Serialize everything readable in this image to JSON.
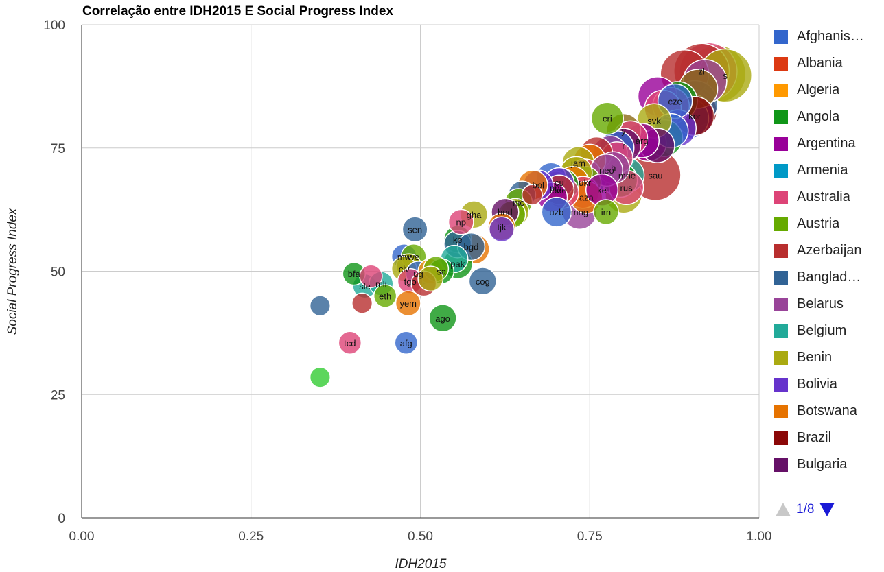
{
  "title": "Correlação entre IDH2015 E Social Progress Index",
  "legend": {
    "items": [
      {
        "label": "Afghanis…",
        "color": "#3366cc"
      },
      {
        "label": "Albania",
        "color": "#dc3912"
      },
      {
        "label": "Algeria",
        "color": "#ff9900"
      },
      {
        "label": "Angola",
        "color": "#109618"
      },
      {
        "label": "Argentina",
        "color": "#990099"
      },
      {
        "label": "Armenia",
        "color": "#0099c6"
      },
      {
        "label": "Australia",
        "color": "#dd4477"
      },
      {
        "label": "Austria",
        "color": "#66aa00"
      },
      {
        "label": "Azerbaijan",
        "color": "#b82e2e"
      },
      {
        "label": "Banglad…",
        "color": "#316395"
      },
      {
        "label": "Belarus",
        "color": "#994499"
      },
      {
        "label": "Belgium",
        "color": "#22aa99"
      },
      {
        "label": "Benin",
        "color": "#aaaa11"
      },
      {
        "label": "Bolivia",
        "color": "#6633cc"
      },
      {
        "label": "Botswana",
        "color": "#e67300"
      },
      {
        "label": "Brazil",
        "color": "#8b0707"
      },
      {
        "label": "Bulgaria",
        "color": "#651067"
      }
    ],
    "pager": {
      "text": "1/8"
    }
  },
  "chart_data": {
    "type": "scatter",
    "title": "Correlação entre IDH2015 E Social Progress Index",
    "xlabel": "IDH2015",
    "ylabel": "Social Progress Index",
    "xlim": [
      0.0,
      1.0
    ],
    "ylim": [
      0,
      100
    ],
    "x_ticks": [
      "0.00",
      "0.25",
      "0.50",
      "0.75",
      "1.00"
    ],
    "y_ticks": [
      "0",
      "25",
      "50",
      "75",
      "100"
    ],
    "grid": true,
    "legend_position": "right",
    "bubble": true,
    "points": [
      {
        "x": 0.938,
        "y": 90.0,
        "label": "",
        "color": "#aaaa11",
        "size": 1.0
      },
      {
        "x": 0.925,
        "y": 90.5,
        "label": "",
        "color": "#dd4477",
        "size": 1.0
      },
      {
        "x": 0.915,
        "y": 90.6,
        "label": "zl",
        "color": "#b82e2e",
        "size": 0.95
      },
      {
        "x": 0.95,
        "y": 89.7,
        "label": "s",
        "color": "#aaaa11",
        "size": 0.9
      },
      {
        "x": 0.89,
        "y": 90.0,
        "label": "",
        "color": "#b82e2e",
        "size": 0.8
      },
      {
        "x": 0.92,
        "y": 88.5,
        "label": "",
        "color": "#994499",
        "size": 0.7
      },
      {
        "x": 0.91,
        "y": 87.0,
        "label": "",
        "color": "#8b6914",
        "size": 0.6
      },
      {
        "x": 0.9,
        "y": 82.5,
        "label": "",
        "color": "#8b0707",
        "size": 0.85
      },
      {
        "x": 0.895,
        "y": 82.0,
        "label": "",
        "color": "#dd4477",
        "size": 0.85
      },
      {
        "x": 0.905,
        "y": 84.0,
        "label": "",
        "color": "#316395",
        "size": 0.75
      },
      {
        "x": 0.9,
        "y": 81.5,
        "label": "",
        "color": "#6633cc",
        "size": 0.7
      },
      {
        "x": 0.88,
        "y": 84.5,
        "label": "",
        "color": "#109618",
        "size": 0.6
      },
      {
        "x": 0.895,
        "y": 81.0,
        "label": "",
        "color": "#3366cc",
        "size": 0.65
      },
      {
        "x": 0.85,
        "y": 85.5,
        "label": "",
        "color": "#990099",
        "size": 0.6
      },
      {
        "x": 0.876,
        "y": 84.5,
        "label": "cze",
        "color": "#3366cc",
        "size": 0.5
      },
      {
        "x": 0.905,
        "y": 81.5,
        "label": "kor",
        "color": "#8b0707",
        "size": 0.6
      },
      {
        "x": 0.87,
        "y": 83.5,
        "label": "",
        "color": "#dd4477",
        "size": 0.55
      },
      {
        "x": 0.858,
        "y": 83.0,
        "label": "",
        "color": "#dd4477",
        "size": 0.55
      },
      {
        "x": 0.88,
        "y": 79.0,
        "label": "",
        "color": "#6633cc",
        "size": 0.55
      },
      {
        "x": 0.87,
        "y": 78.5,
        "label": "",
        "color": "#3366cc",
        "size": 0.5
      },
      {
        "x": 0.86,
        "y": 77.0,
        "label": "",
        "color": "#109618",
        "size": 0.55
      },
      {
        "x": 0.845,
        "y": 80.5,
        "label": "svk",
        "color": "#aaaa11",
        "size": 0.5
      },
      {
        "x": 0.85,
        "y": 75.5,
        "label": "",
        "color": "#651067",
        "size": 0.5
      },
      {
        "x": 0.836,
        "y": 76.0,
        "label": "",
        "color": "#990099",
        "size": 0.55
      },
      {
        "x": 0.827,
        "y": 76.5,
        "label": "arg",
        "color": "#990099",
        "size": 0.5
      },
      {
        "x": 0.8,
        "y": 78.5,
        "label": "y",
        "color": "#8b6914",
        "size": 0.5
      },
      {
        "x": 0.776,
        "y": 81.0,
        "label": "cri",
        "color": "#66aa00",
        "size": 0.45
      },
      {
        "x": 0.81,
        "y": 77.0,
        "label": "",
        "color": "#dd4477",
        "size": 0.5
      },
      {
        "x": 0.8,
        "y": 75.5,
        "label": "r",
        "color": "#651067",
        "size": 0.5
      },
      {
        "x": 0.79,
        "y": 75.0,
        "label": "",
        "color": "#3366cc",
        "size": 0.5
      },
      {
        "x": 0.78,
        "y": 74.0,
        "label": "",
        "color": "#994499",
        "size": 0.5
      },
      {
        "x": 0.79,
        "y": 73.0,
        "label": "",
        "color": "#dd4477",
        "size": 0.45
      },
      {
        "x": 0.76,
        "y": 74.0,
        "label": "",
        "color": "#b82e2e",
        "size": 0.45
      },
      {
        "x": 0.785,
        "y": 71.0,
        "label": "h",
        "color": "#994499",
        "size": 0.45
      },
      {
        "x": 0.75,
        "y": 72.5,
        "label": "",
        "color": "#e67300",
        "size": 0.45
      },
      {
        "x": 0.733,
        "y": 72.0,
        "label": "jam",
        "color": "#aaaa11",
        "size": 0.45
      },
      {
        "x": 0.743,
        "y": 69.5,
        "label": "",
        "color": "#dd4477",
        "size": 0.45
      },
      {
        "x": 0.775,
        "y": 70.5,
        "label": "neo",
        "color": "#994499",
        "size": 0.45
      },
      {
        "x": 0.805,
        "y": 69.5,
        "label": "mne",
        "color": "#22aa99",
        "size": 0.5
      },
      {
        "x": 0.795,
        "y": 68.5,
        "label": "",
        "color": "#109618",
        "size": 0.5
      },
      {
        "x": 0.847,
        "y": 69.5,
        "label": "sau",
        "color": "#b82e2e",
        "size": 0.85
      },
      {
        "x": 0.8,
        "y": 65.5,
        "label": "",
        "color": "#aaaa11",
        "size": 0.55
      },
      {
        "x": 0.804,
        "y": 67.0,
        "label": "rus",
        "color": "#dd4477",
        "size": 0.5
      },
      {
        "x": 0.75,
        "y": 69.0,
        "label": "",
        "color": "#22aa99",
        "size": 0.5
      },
      {
        "x": 0.743,
        "y": 68.0,
        "label": "ukr",
        "color": "#66aa00",
        "size": 0.45
      },
      {
        "x": 0.73,
        "y": 70.0,
        "label": "",
        "color": "#aaaa11",
        "size": 0.45
      },
      {
        "x": 0.725,
        "y": 68.0,
        "label": "",
        "color": "#e67300",
        "size": 0.45
      },
      {
        "x": 0.74,
        "y": 66.0,
        "label": "",
        "color": "#dd4477",
        "size": 0.45
      },
      {
        "x": 0.745,
        "y": 65.0,
        "label": "aza",
        "color": "#e67300",
        "size": 0.45
      },
      {
        "x": 0.768,
        "y": 66.5,
        "label": "ke",
        "color": "#990099",
        "size": 0.45
      },
      {
        "x": 0.71,
        "y": 67.5,
        "label": "",
        "color": "#109618",
        "size": 0.45
      },
      {
        "x": 0.7,
        "y": 67.0,
        "label": "pry",
        "color": "#8b0707",
        "size": 0.45
      },
      {
        "x": 0.71,
        "y": 66.0,
        "label": "",
        "color": "#dd4477",
        "size": 0.45
      },
      {
        "x": 0.693,
        "y": 69.0,
        "label": "",
        "color": "#3366cc",
        "size": 0.4
      },
      {
        "x": 0.705,
        "y": 68.0,
        "label": "cu",
        "color": "#6633cc",
        "size": 0.4
      },
      {
        "x": 0.705,
        "y": 66.5,
        "label": "bde",
        "color": "#b82e2e",
        "size": 0.4
      },
      {
        "x": 0.695,
        "y": 65.0,
        "label": "",
        "color": "#990099",
        "size": 0.4
      },
      {
        "x": 0.674,
        "y": 67.5,
        "label": "bol",
        "color": "#6633cc",
        "size": 0.4
      },
      {
        "x": 0.666,
        "y": 67.5,
        "label": "",
        "color": "#e67300",
        "size": 0.4
      },
      {
        "x": 0.665,
        "y": 65.5,
        "label": "",
        "color": "#b82e2e",
        "size": 0.2
      },
      {
        "x": 0.65,
        "y": 65.5,
        "label": "",
        "color": "#316395",
        "size": 0.35
      },
      {
        "x": 0.701,
        "y": 62.0,
        "label": "uzb",
        "color": "#3366cc",
        "size": 0.4
      },
      {
        "x": 0.735,
        "y": 62.0,
        "label": "mng",
        "color": "#994499",
        "size": 0.5
      },
      {
        "x": 0.774,
        "y": 62.0,
        "label": "irn",
        "color": "#66aa00",
        "size": 0.3
      },
      {
        "x": 0.645,
        "y": 64.0,
        "label": "nic",
        "color": "#66aa00",
        "size": 0.35
      },
      {
        "x": 0.64,
        "y": 62.0,
        "label": "",
        "color": "#aaaa11",
        "size": 0.35
      },
      {
        "x": 0.635,
        "y": 61.5,
        "label": "",
        "color": "#66aa00",
        "size": 0.35
      },
      {
        "x": 0.625,
        "y": 62.0,
        "label": "hnd",
        "color": "#651067",
        "size": 0.35
      },
      {
        "x": 0.62,
        "y": 59.0,
        "label": "tjk",
        "color": "#e67300",
        "size": 0.35
      },
      {
        "x": 0.62,
        "y": 58.5,
        "label": "",
        "color": "#6633cc",
        "size": 0.3
      },
      {
        "x": 0.579,
        "y": 61.5,
        "label": "gha",
        "color": "#aaaa11",
        "size": 0.35
      },
      {
        "x": 0.56,
        "y": 60.0,
        "label": "np",
        "color": "#dd4477",
        "size": 0.3
      },
      {
        "x": 0.555,
        "y": 56.5,
        "label": "ke",
        "color": "#109618",
        "size": 0.35
      },
      {
        "x": 0.555,
        "y": 55.5,
        "label": "",
        "color": "#316395",
        "size": 0.35
      },
      {
        "x": 0.575,
        "y": 55.0,
        "label": "bgd",
        "color": "#316395",
        "size": 0.35
      },
      {
        "x": 0.58,
        "y": 54.5,
        "label": "",
        "color": "#e67300",
        "size": 0.4
      },
      {
        "x": 0.55,
        "y": 52.5,
        "label": "",
        "color": "#22aa99",
        "size": 0.35
      },
      {
        "x": 0.555,
        "y": 51.5,
        "label": "pak",
        "color": "#109618",
        "size": 0.4
      },
      {
        "x": 0.492,
        "y": 58.5,
        "label": "sen",
        "color": "#316395",
        "size": 0.3
      },
      {
        "x": 0.476,
        "y": 53.0,
        "label": "mw",
        "color": "#3366cc",
        "size": 0.3
      },
      {
        "x": 0.49,
        "y": 53.0,
        "label": "we",
        "color": "#66aa00",
        "size": 0.3
      },
      {
        "x": 0.483,
        "y": 51.0,
        "label": "",
        "color": "#aaaa11",
        "size": 0.3
      },
      {
        "x": 0.476,
        "y": 50.5,
        "label": "civ",
        "color": "#aaaa11",
        "size": 0.3
      },
      {
        "x": 0.497,
        "y": 49.5,
        "label": "ug",
        "color": "#3366cc",
        "size": 0.3
      },
      {
        "x": 0.515,
        "y": 50.0,
        "label": "",
        "color": "#ff9900",
        "size": 0.3
      },
      {
        "x": 0.531,
        "y": 50.0,
        "label": "sa",
        "color": "#109618",
        "size": 0.3
      },
      {
        "x": 0.523,
        "y": 50.5,
        "label": "",
        "color": "#66aa00",
        "size": 0.3
      },
      {
        "x": 0.485,
        "y": 48.0,
        "label": "tgo",
        "color": "#dd4477",
        "size": 0.3
      },
      {
        "x": 0.505,
        "y": 47.5,
        "label": "",
        "color": "#b82e2e",
        "size": 0.3
      },
      {
        "x": 0.515,
        "y": 48.5,
        "label": "",
        "color": "#aaaa11",
        "size": 0.3
      },
      {
        "x": 0.402,
        "y": 49.5,
        "label": "bfa",
        "color": "#109618",
        "size": 0.25
      },
      {
        "x": 0.427,
        "y": 49.0,
        "label": "",
        "color": "#dd4477",
        "size": 0.25
      },
      {
        "x": 0.418,
        "y": 47.0,
        "label": "sle",
        "color": "#22aa99",
        "size": 0.28
      },
      {
        "x": 0.442,
        "y": 47.5,
        "label": "mli",
        "color": "#22aa99",
        "size": 0.28
      },
      {
        "x": 0.448,
        "y": 45.0,
        "label": "eth",
        "color": "#66aa00",
        "size": 0.25
      },
      {
        "x": 0.592,
        "y": 48.0,
        "label": "cog",
        "color": "#316395",
        "size": 0.35
      },
      {
        "x": 0.352,
        "y": 43.0,
        "label": "",
        "color": "#316395",
        "size": 0.2
      },
      {
        "x": 0.414,
        "y": 43.5,
        "label": "",
        "color": "#b82e2e",
        "size": 0.2
      },
      {
        "x": 0.482,
        "y": 43.5,
        "label": "yem",
        "color": "#e67300",
        "size": 0.3
      },
      {
        "x": 0.533,
        "y": 40.5,
        "label": "ago",
        "color": "#109618",
        "size": 0.35
      },
      {
        "x": 0.396,
        "y": 35.5,
        "label": "tcd",
        "color": "#dd4477",
        "size": 0.25
      },
      {
        "x": 0.479,
        "y": 35.5,
        "label": "afg",
        "color": "#3366cc",
        "size": 0.25
      },
      {
        "x": 0.352,
        "y": 28.5,
        "label": "",
        "color": "#33cc33",
        "size": 0.2
      }
    ]
  }
}
